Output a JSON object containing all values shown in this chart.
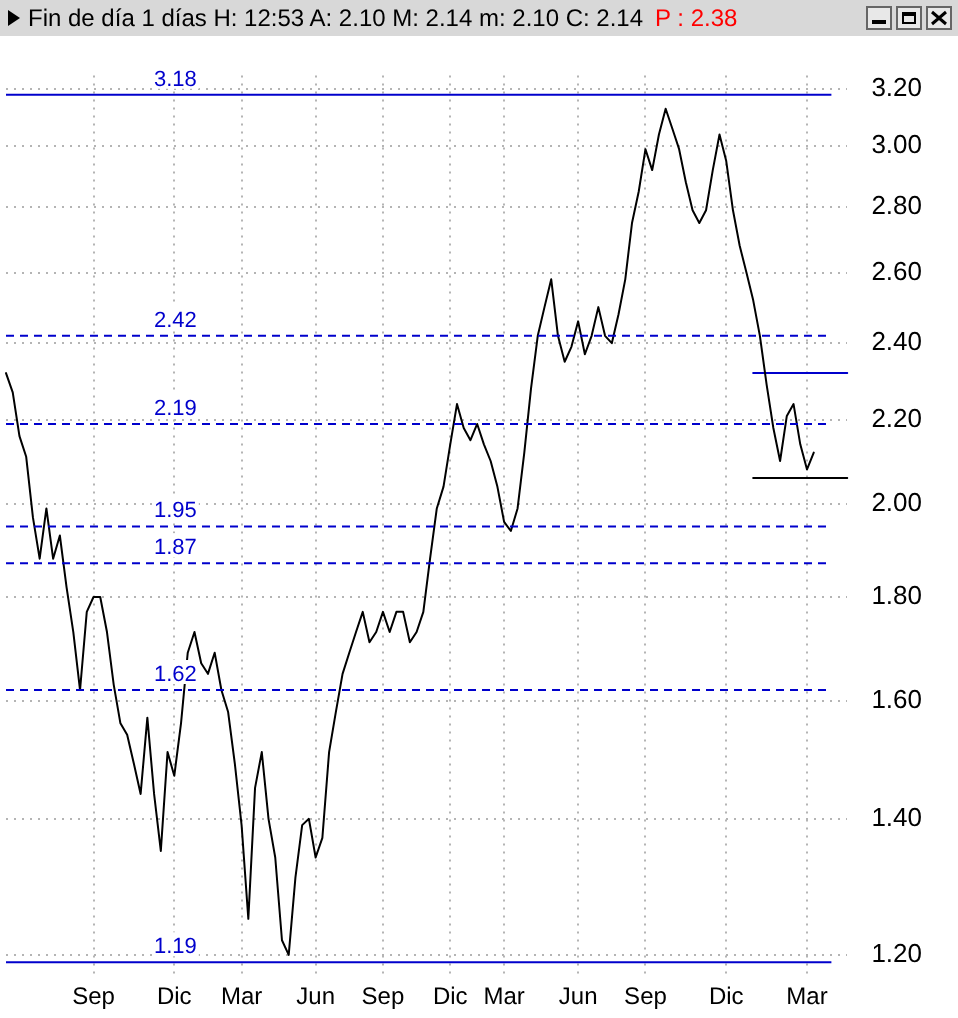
{
  "chart_data": {
    "type": "line",
    "title": "Fin de día 1 días H: 12:53 A: 2.10 M: 2.14 m: 2.10 C: 2.14",
    "annotations": [
      "P : 2.38"
    ],
    "log": "y",
    "grid": true,
    "legend": false,
    "marker": "none",
    "line_style": "solid",
    "ylim": [
      1.17,
      3.25
    ],
    "categories": [
      null,
      null,
      null,
      null,
      null,
      null,
      null,
      null,
      null,
      null,
      null,
      null,
      null,
      "Sep",
      null,
      null,
      null,
      null,
      null,
      null,
      null,
      null,
      null,
      null,
      null,
      "Dic",
      null,
      null,
      null,
      null,
      null,
      null,
      null,
      null,
      null,
      "Mar",
      null,
      null,
      null,
      null,
      null,
      null,
      null,
      null,
      null,
      null,
      "Jun",
      null,
      null,
      null,
      null,
      null,
      null,
      null,
      null,
      null,
      "Sep",
      null,
      null,
      null,
      null,
      null,
      null,
      null,
      null,
      null,
      "Dic",
      null,
      null,
      null,
      null,
      null,
      null,
      null,
      "Mar",
      null,
      null,
      null,
      null,
      null,
      null,
      null,
      null,
      null,
      null,
      "Jun",
      null,
      null,
      null,
      null,
      null,
      null,
      null,
      null,
      null,
      "Sep",
      null,
      null,
      null,
      null,
      null,
      null,
      null,
      null,
      null,
      null,
      null,
      "Dic",
      null,
      null,
      null,
      null,
      null,
      null,
      null,
      null,
      null,
      null,
      null,
      "Mar",
      null,
      null,
      null,
      null,
      null,
      null
    ],
    "yticks": [
      {
        "value": 1.2,
        "label": "1.20"
      },
      {
        "value": 1.4,
        "label": "1.40"
      },
      {
        "value": 1.6,
        "label": "1.60"
      },
      {
        "value": 1.8,
        "label": "1.80"
      },
      {
        "value": 2.0,
        "label": "2.00"
      },
      {
        "value": 2.2,
        "label": "2.20"
      },
      {
        "value": 2.4,
        "label": "2.40"
      },
      {
        "value": 2.6,
        "label": "2.60"
      },
      {
        "value": 2.8,
        "label": "2.80"
      },
      {
        "value": 3.0,
        "label": "3.00"
      },
      {
        "value": 3.2,
        "label": "3.20"
      }
    ],
    "ref_lines": [
      {
        "axis": "y",
        "value": 3.18,
        "label": "3.18",
        "color": "#0000cc",
        "line_style": "solid"
      },
      {
        "axis": "y",
        "value": 2.42,
        "label": "2.42",
        "color": "#0000cc",
        "line_style": "dashed"
      },
      {
        "axis": "y",
        "value": 2.19,
        "label": "2.19",
        "color": "#0000cc",
        "line_style": "dashed"
      },
      {
        "axis": "y",
        "value": 1.95,
        "label": "1.95",
        "color": "#0000cc",
        "line_style": "dashed"
      },
      {
        "axis": "y",
        "value": 1.87,
        "label": "1.87",
        "color": "#0000cc",
        "line_style": "dashed"
      },
      {
        "axis": "y",
        "value": 1.62,
        "label": "1.62",
        "color": "#0000cc",
        "line_style": "dashed"
      },
      {
        "axis": "y",
        "value": 1.19,
        "label": "1.19",
        "color": "#0000cc",
        "line_style": "solid"
      }
    ],
    "series": [
      {
        "color": "#000000",
        "values": [
          2.32,
          2.27,
          2.16,
          2.11,
          1.97,
          1.88,
          1.99,
          1.88,
          1.93,
          1.82,
          1.73,
          1.62,
          1.77,
          1.8,
          1.8,
          1.73,
          1.63,
          1.56,
          1.54,
          1.49,
          1.44,
          1.57,
          1.44,
          1.35,
          1.51,
          1.47,
          1.56,
          1.69,
          1.73,
          1.67,
          1.65,
          1.69,
          1.62,
          1.58,
          1.49,
          1.39,
          1.25,
          1.45,
          1.51,
          1.4,
          1.34,
          1.22,
          1.2,
          1.31,
          1.39,
          1.4,
          1.34,
          1.37,
          1.51,
          1.58,
          1.65,
          1.69,
          1.73,
          1.77,
          1.71,
          1.73,
          1.77,
          1.73,
          1.77,
          1.77,
          1.71,
          1.73,
          1.77,
          1.88,
          1.99,
          2.04,
          2.14,
          2.24,
          2.18,
          2.15,
          2.19,
          2.14,
          2.1,
          2.04,
          1.96,
          1.94,
          1.99,
          2.12,
          2.28,
          2.42,
          2.5,
          2.58,
          2.42,
          2.35,
          2.39,
          2.46,
          2.37,
          2.42,
          2.5,
          2.42,
          2.4,
          2.48,
          2.58,
          2.75,
          2.85,
          2.99,
          2.92,
          3.04,
          3.13,
          3.06,
          2.99,
          2.88,
          2.79,
          2.75,
          2.79,
          2.92,
          3.04,
          2.95,
          2.79,
          2.68,
          2.6,
          2.52,
          2.42,
          2.29,
          2.18,
          2.1,
          2.21,
          2.24,
          2.14,
          2.08,
          2.12,
          null,
          null,
          null,
          null,
          null
        ]
      },
      {
        "color": "#0000cc",
        "values": [
          null,
          null,
          null,
          null,
          null,
          null,
          null,
          null,
          null,
          null,
          null,
          null,
          null,
          null,
          null,
          null,
          null,
          null,
          null,
          null,
          null,
          null,
          null,
          null,
          null,
          null,
          null,
          null,
          null,
          null,
          null,
          null,
          null,
          null,
          null,
          null,
          null,
          null,
          null,
          null,
          null,
          null,
          null,
          null,
          null,
          null,
          null,
          null,
          null,
          null,
          null,
          null,
          null,
          null,
          null,
          null,
          null,
          null,
          null,
          null,
          null,
          null,
          null,
          null,
          null,
          null,
          null,
          null,
          null,
          null,
          null,
          null,
          null,
          null,
          null,
          null,
          null,
          null,
          null,
          null,
          null,
          null,
          null,
          null,
          null,
          null,
          null,
          null,
          null,
          null,
          null,
          null,
          null,
          null,
          null,
          null,
          null,
          null,
          null,
          null,
          null,
          null,
          null,
          null,
          null,
          null,
          null,
          null,
          null,
          null,
          null,
          2.32,
          2.32,
          2.32,
          2.32,
          2.32,
          2.32,
          2.32,
          2.32,
          2.32,
          2.32,
          2.32,
          2.32,
          2.32,
          2.32,
          2.32
        ]
      },
      {
        "color": "#000000",
        "values": [
          null,
          null,
          null,
          null,
          null,
          null,
          null,
          null,
          null,
          null,
          null,
          null,
          null,
          null,
          null,
          null,
          null,
          null,
          null,
          null,
          null,
          null,
          null,
          null,
          null,
          null,
          null,
          null,
          null,
          null,
          null,
          null,
          null,
          null,
          null,
          null,
          null,
          null,
          null,
          null,
          null,
          null,
          null,
          null,
          null,
          null,
          null,
          null,
          null,
          null,
          null,
          null,
          null,
          null,
          null,
          null,
          null,
          null,
          null,
          null,
          null,
          null,
          null,
          null,
          null,
          null,
          null,
          null,
          null,
          null,
          null,
          null,
          null,
          null,
          null,
          null,
          null,
          null,
          null,
          null,
          null,
          null,
          null,
          null,
          null,
          null,
          null,
          null,
          null,
          null,
          null,
          null,
          null,
          null,
          null,
          null,
          null,
          null,
          null,
          null,
          null,
          null,
          null,
          null,
          null,
          null,
          null,
          null,
          null,
          null,
          null,
          2.06,
          2.06,
          2.06,
          2.06,
          2.06,
          2.06,
          2.06,
          2.06,
          2.06,
          2.06,
          2.06,
          2.06,
          2.06,
          2.06,
          2.06
        ]
      }
    ]
  }
}
